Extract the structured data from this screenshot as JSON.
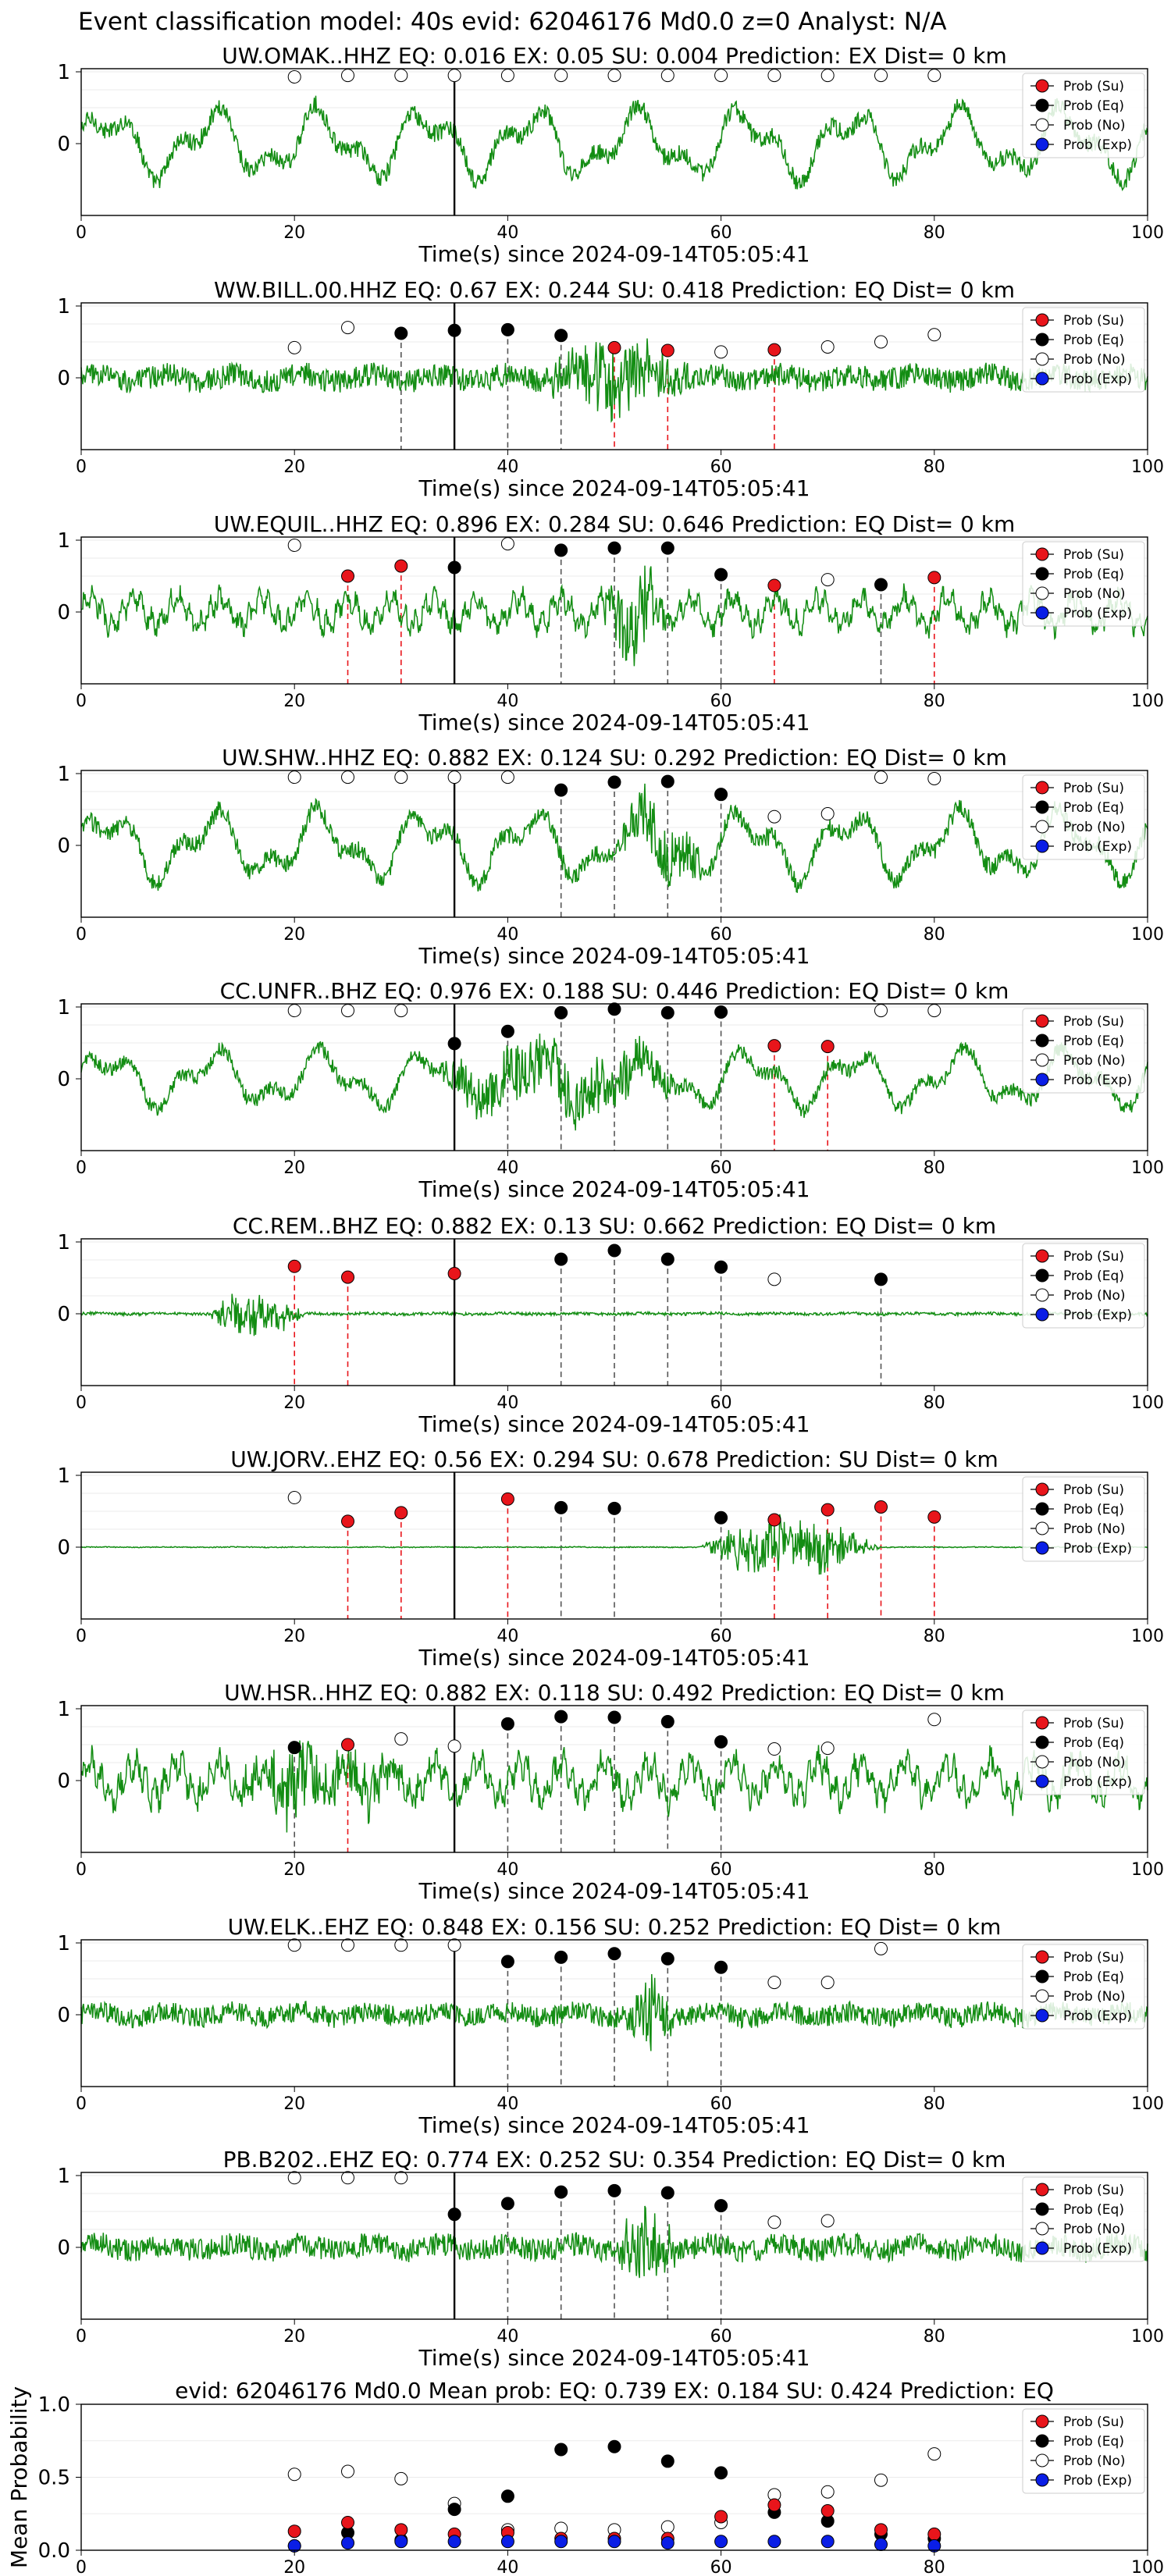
{
  "suptitle": "Event classification model: 40s evid: 62046176 Md0.0 z=0 Analyst: N/A",
  "xlabel": "Time(s) since 2024-09-14T05:05:41",
  "legend": [
    "Prob (Su)",
    "Prob (Eq)",
    "Prob (No)",
    "Prob (Exp)"
  ],
  "colors": {
    "su": "#e8151b",
    "eq": "#000000",
    "no": "#ffffff",
    "exp": "#0a1ee6",
    "trace": "#138d13",
    "pick": "#000000",
    "vline_eq": "#555555",
    "vline_su": "#e8151b"
  },
  "chart_data": {
    "type": "line",
    "x_ticks": [
      0,
      20,
      40,
      60,
      80,
      100
    ],
    "y_ticks": [
      0,
      1
    ],
    "xlim": [
      0,
      100
    ],
    "pick_time": 35,
    "window_times": [
      20,
      25,
      30,
      35,
      40,
      45,
      50,
      55,
      60,
      65,
      70,
      75,
      80
    ],
    "panels": [
      {
        "station": "UW.OMAK..HHZ",
        "eq": "0.016",
        "ex": "0.05",
        "su": "0.004",
        "prediction": "EX",
        "dist": "0",
        "style": "lowfreq",
        "amp": 0.55,
        "burst": null,
        "points": [
          {
            "t": 20,
            "c": "no",
            "v": 0.93
          },
          {
            "t": 25,
            "c": "no",
            "v": 0.95
          },
          {
            "t": 30,
            "c": "no",
            "v": 0.95
          },
          {
            "t": 35,
            "c": "no",
            "v": 0.95
          },
          {
            "t": 40,
            "c": "no",
            "v": 0.95
          },
          {
            "t": 45,
            "c": "no",
            "v": 0.95
          },
          {
            "t": 50,
            "c": "no",
            "v": 0.95
          },
          {
            "t": 55,
            "c": "no",
            "v": 0.95
          },
          {
            "t": 60,
            "c": "no",
            "v": 0.95
          },
          {
            "t": 65,
            "c": "no",
            "v": 0.95
          },
          {
            "t": 70,
            "c": "no",
            "v": 0.95
          },
          {
            "t": 75,
            "c": "no",
            "v": 0.95
          },
          {
            "t": 80,
            "c": "no",
            "v": 0.95
          }
        ]
      },
      {
        "station": "WW.BILL.00.HHZ",
        "eq": "0.67",
        "ex": "0.244",
        "su": "0.418",
        "prediction": "EQ",
        "dist": "0",
        "style": "hf",
        "amp": 0.25,
        "burst": {
          "start": 43,
          "end": 58,
          "amp": 0.9
        },
        "points": [
          {
            "t": 20,
            "c": "no",
            "v": 0.42
          },
          {
            "t": 25,
            "c": "no",
            "v": 0.7
          },
          {
            "t": 30,
            "c": "eq",
            "v": 0.62
          },
          {
            "t": 35,
            "c": "eq",
            "v": 0.66
          },
          {
            "t": 40,
            "c": "eq",
            "v": 0.67
          },
          {
            "t": 45,
            "c": "eq",
            "v": 0.59
          },
          {
            "t": 50,
            "c": "su",
            "v": 0.42
          },
          {
            "t": 55,
            "c": "su",
            "v": 0.38
          },
          {
            "t": 60,
            "c": "no",
            "v": 0.36
          },
          {
            "t": 65,
            "c": "su",
            "v": 0.39
          },
          {
            "t": 70,
            "c": "no",
            "v": 0.43
          },
          {
            "t": 75,
            "c": "no",
            "v": 0.5
          },
          {
            "t": 80,
            "c": "no",
            "v": 0.6
          }
        ]
      },
      {
        "station": "UW.EQUIL..HHZ",
        "eq": "0.896",
        "ex": "0.284",
        "su": "0.646",
        "prediction": "EQ",
        "dist": "0",
        "style": "mid",
        "amp": 0.35,
        "burst": {
          "start": 49,
          "end": 55,
          "amp": 1.3
        },
        "points": [
          {
            "t": 20,
            "c": "no",
            "v": 0.93
          },
          {
            "t": 25,
            "c": "su",
            "v": 0.5
          },
          {
            "t": 30,
            "c": "su",
            "v": 0.64
          },
          {
            "t": 35,
            "c": "eq",
            "v": 0.62
          },
          {
            "t": 40,
            "c": "no",
            "v": 0.95
          },
          {
            "t": 45,
            "c": "eq",
            "v": 0.86
          },
          {
            "t": 50,
            "c": "eq",
            "v": 0.89
          },
          {
            "t": 55,
            "c": "eq",
            "v": 0.89
          },
          {
            "t": 60,
            "c": "eq",
            "v": 0.52
          },
          {
            "t": 65,
            "c": "su",
            "v": 0.37
          },
          {
            "t": 70,
            "c": "no",
            "v": 0.45
          },
          {
            "t": 75,
            "c": "eq",
            "v": 0.38
          },
          {
            "t": 80,
            "c": "su",
            "v": 0.48
          }
        ]
      },
      {
        "station": "UW.SHW..HHZ",
        "eq": "0.882",
        "ex": "0.124",
        "su": "0.292",
        "prediction": "EQ",
        "dist": "0",
        "style": "lowfreq",
        "amp": 0.55,
        "burst": {
          "start": 51,
          "end": 58,
          "amp": 0.8
        },
        "points": [
          {
            "t": 20,
            "c": "no",
            "v": 0.95
          },
          {
            "t": 25,
            "c": "no",
            "v": 0.95
          },
          {
            "t": 30,
            "c": "no",
            "v": 0.95
          },
          {
            "t": 35,
            "c": "no",
            "v": 0.95
          },
          {
            "t": 40,
            "c": "no",
            "v": 0.95
          },
          {
            "t": 45,
            "c": "eq",
            "v": 0.77
          },
          {
            "t": 50,
            "c": "eq",
            "v": 0.88
          },
          {
            "t": 55,
            "c": "eq",
            "v": 0.89
          },
          {
            "t": 60,
            "c": "eq",
            "v": 0.71
          },
          {
            "t": 65,
            "c": "no",
            "v": 0.4
          },
          {
            "t": 70,
            "c": "no",
            "v": 0.44
          },
          {
            "t": 75,
            "c": "no",
            "v": 0.95
          },
          {
            "t": 80,
            "c": "no",
            "v": 0.93
          }
        ]
      },
      {
        "station": "CC.UNFR..BHZ",
        "eq": "0.976",
        "ex": "0.188",
        "su": "0.446",
        "prediction": "EQ",
        "dist": "0",
        "style": "lowfreq",
        "amp": 0.45,
        "burst": {
          "start": 34,
          "end": 56,
          "amp": 0.75
        },
        "points": [
          {
            "t": 20,
            "c": "no",
            "v": 0.95
          },
          {
            "t": 25,
            "c": "no",
            "v": 0.95
          },
          {
            "t": 30,
            "c": "no",
            "v": 0.95
          },
          {
            "t": 35,
            "c": "eq",
            "v": 0.49
          },
          {
            "t": 40,
            "c": "eq",
            "v": 0.66
          },
          {
            "t": 45,
            "c": "eq",
            "v": 0.92
          },
          {
            "t": 50,
            "c": "eq",
            "v": 0.97
          },
          {
            "t": 55,
            "c": "eq",
            "v": 0.92
          },
          {
            "t": 60,
            "c": "eq",
            "v": 0.93
          },
          {
            "t": 65,
            "c": "su",
            "v": 0.46
          },
          {
            "t": 70,
            "c": "su",
            "v": 0.45
          },
          {
            "t": 75,
            "c": "no",
            "v": 0.95
          },
          {
            "t": 80,
            "c": "no",
            "v": 0.95
          }
        ]
      },
      {
        "station": "CC.REM..BHZ",
        "eq": "0.882",
        "ex": "0.13",
        "su": "0.662",
        "prediction": "EQ",
        "dist": "0",
        "style": "flat",
        "amp": 0.03,
        "burst": {
          "start": 12,
          "end": 21,
          "amp": 0.85
        },
        "points": [
          {
            "t": 20,
            "c": "su",
            "v": 0.66
          },
          {
            "t": 25,
            "c": "su",
            "v": 0.51
          },
          {
            "t": 35,
            "c": "su",
            "v": 0.56
          },
          {
            "t": 45,
            "c": "eq",
            "v": 0.76
          },
          {
            "t": 50,
            "c": "eq",
            "v": 0.88
          },
          {
            "t": 55,
            "c": "eq",
            "v": 0.76
          },
          {
            "t": 60,
            "c": "eq",
            "v": 0.65
          },
          {
            "t": 65,
            "c": "no",
            "v": 0.48
          },
          {
            "t": 75,
            "c": "eq",
            "v": 0.48
          }
        ]
      },
      {
        "station": "UW.JORV..EHZ",
        "eq": "0.56",
        "ex": "0.294",
        "su": "0.678",
        "prediction": "SU",
        "dist": "0",
        "style": "flat",
        "amp": 0.01,
        "burst": {
          "start": 58,
          "end": 75,
          "amp": 1.0
        },
        "points": [
          {
            "t": 20,
            "c": "no",
            "v": 0.69
          },
          {
            "t": 25,
            "c": "su",
            "v": 0.36
          },
          {
            "t": 30,
            "c": "su",
            "v": 0.48
          },
          {
            "t": 40,
            "c": "su",
            "v": 0.67
          },
          {
            "t": 45,
            "c": "eq",
            "v": 0.55
          },
          {
            "t": 50,
            "c": "eq",
            "v": 0.54
          },
          {
            "t": 60,
            "c": "eq",
            "v": 0.41
          },
          {
            "t": 65,
            "c": "su",
            "v": 0.38
          },
          {
            "t": 70,
            "c": "su",
            "v": 0.52
          },
          {
            "t": 75,
            "c": "su",
            "v": 0.56
          },
          {
            "t": 80,
            "c": "su",
            "v": 0.42
          }
        ]
      },
      {
        "station": "UW.HSR..HHZ",
        "eq": "0.882",
        "ex": "0.118",
        "su": "0.492",
        "prediction": "EQ",
        "dist": "0",
        "style": "mid",
        "amp": 0.45,
        "burst": {
          "start": 15,
          "end": 30,
          "amp": 0.8
        },
        "points": [
          {
            "t": 20,
            "c": "eq",
            "v": 0.46
          },
          {
            "t": 25,
            "c": "su",
            "v": 0.5
          },
          {
            "t": 30,
            "c": "no",
            "v": 0.58
          },
          {
            "t": 35,
            "c": "no",
            "v": 0.48
          },
          {
            "t": 40,
            "c": "eq",
            "v": 0.79
          },
          {
            "t": 45,
            "c": "eq",
            "v": 0.89
          },
          {
            "t": 50,
            "c": "eq",
            "v": 0.88
          },
          {
            "t": 55,
            "c": "eq",
            "v": 0.82
          },
          {
            "t": 60,
            "c": "eq",
            "v": 0.54
          },
          {
            "t": 65,
            "c": "no",
            "v": 0.44
          },
          {
            "t": 70,
            "c": "no",
            "v": 0.45
          },
          {
            "t": 80,
            "c": "no",
            "v": 0.85
          }
        ]
      },
      {
        "station": "UW.ELK..EHZ",
        "eq": "0.848",
        "ex": "0.156",
        "su": "0.252",
        "prediction": "EQ",
        "dist": "0",
        "style": "hf",
        "amp": 0.22,
        "burst": {
          "start": 51,
          "end": 56,
          "amp": 0.9
        },
        "points": [
          {
            "t": 20,
            "c": "no",
            "v": 0.97
          },
          {
            "t": 25,
            "c": "no",
            "v": 0.97
          },
          {
            "t": 30,
            "c": "no",
            "v": 0.97
          },
          {
            "t": 35,
            "c": "no",
            "v": 0.97
          },
          {
            "t": 40,
            "c": "eq",
            "v": 0.74
          },
          {
            "t": 45,
            "c": "eq",
            "v": 0.8
          },
          {
            "t": 50,
            "c": "eq",
            "v": 0.85
          },
          {
            "t": 55,
            "c": "eq",
            "v": 0.78
          },
          {
            "t": 60,
            "c": "eq",
            "v": 0.66
          },
          {
            "t": 65,
            "c": "no",
            "v": 0.45
          },
          {
            "t": 70,
            "c": "no",
            "v": 0.45
          },
          {
            "t": 75,
            "c": "no",
            "v": 0.92
          }
        ]
      },
      {
        "station": "PB.B202..EHZ",
        "eq": "0.774",
        "ex": "0.252",
        "su": "0.354",
        "prediction": "EQ",
        "dist": "0",
        "style": "hf",
        "amp": 0.25,
        "burst": {
          "start": 50,
          "end": 56,
          "amp": 0.95
        },
        "points": [
          {
            "t": 20,
            "c": "no",
            "v": 0.97
          },
          {
            "t": 25,
            "c": "no",
            "v": 0.97
          },
          {
            "t": 30,
            "c": "no",
            "v": 0.97
          },
          {
            "t": 35,
            "c": "eq",
            "v": 0.46
          },
          {
            "t": 40,
            "c": "eq",
            "v": 0.61
          },
          {
            "t": 45,
            "c": "eq",
            "v": 0.77
          },
          {
            "t": 50,
            "c": "eq",
            "v": 0.79
          },
          {
            "t": 55,
            "c": "eq",
            "v": 0.76
          },
          {
            "t": 60,
            "c": "eq",
            "v": 0.58
          },
          {
            "t": 65,
            "c": "no",
            "v": 0.35
          },
          {
            "t": 70,
            "c": "no",
            "v": 0.37
          }
        ]
      }
    ],
    "mean": {
      "title": "evid: 62046176  Md0.0   Mean prob:   EQ: 0.739  EX: 0.184  SU: 0.424   Prediction: EQ",
      "ylabel": "Mean Probability",
      "y_ticks": [
        "0.0",
        "0.5",
        "1.0"
      ],
      "ylim": [
        0,
        1
      ],
      "su": [
        0.13,
        0.19,
        0.14,
        0.11,
        0.12,
        0.08,
        0.08,
        0.08,
        0.23,
        0.31,
        0.27,
        0.14,
        0.11
      ],
      "eq": [
        0.03,
        0.12,
        0.07,
        0.28,
        0.37,
        0.69,
        0.71,
        0.61,
        0.53,
        0.26,
        0.2,
        0.11,
        0.08
      ],
      "no": [
        0.52,
        0.54,
        0.49,
        0.32,
        0.14,
        0.15,
        0.14,
        0.16,
        0.19,
        0.38,
        0.4,
        0.48,
        0.66
      ],
      "exp": [
        0.03,
        0.05,
        0.06,
        0.06,
        0.06,
        0.06,
        0.06,
        0.05,
        0.06,
        0.06,
        0.06,
        0.04,
        0.03
      ]
    }
  }
}
